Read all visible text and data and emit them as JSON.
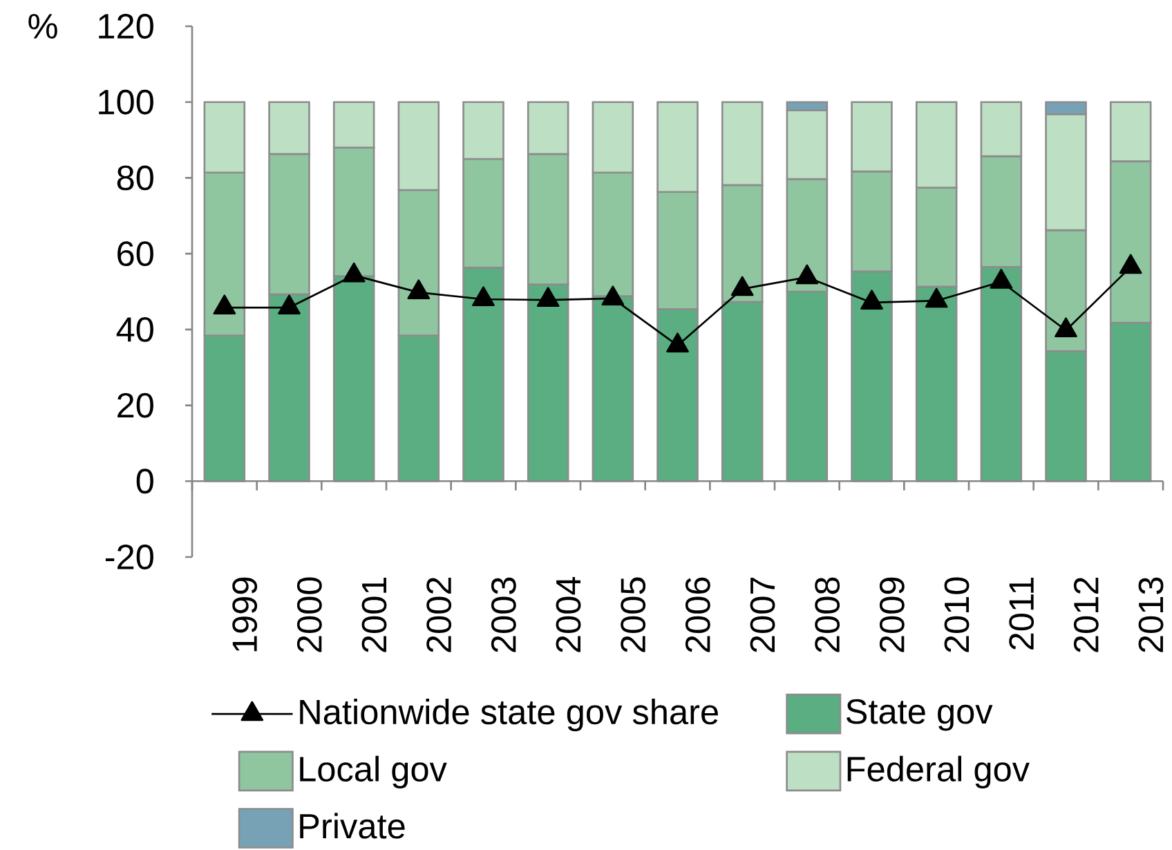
{
  "chart_data": {
    "type": "bar",
    "stacked": true,
    "ylabel": "%",
    "categories": [
      "1999",
      "2000",
      "2001",
      "2002",
      "2003",
      "2004",
      "2005",
      "2006",
      "2007",
      "2008",
      "2009",
      "2010",
      "2011",
      "2012",
      "2013"
    ],
    "series": [
      {
        "name": "State gov",
        "color": "#5aae82",
        "values": [
          38.4,
          49.3,
          54.1,
          38.4,
          56.3,
          51.9,
          48.8,
          45.4,
          47.3,
          50.0,
          55.3,
          51.3,
          56.5,
          34.3,
          41.8
        ]
      },
      {
        "name": "Local gov",
        "color": "#8fc6a0",
        "values": [
          43.0,
          37.0,
          33.9,
          38.4,
          28.7,
          34.4,
          32.6,
          30.9,
          30.8,
          29.7,
          26.4,
          26.1,
          29.2,
          31.9,
          42.6
        ]
      },
      {
        "name": "Federal gov",
        "color": "#bddfc3",
        "values": [
          18.6,
          13.7,
          12.0,
          23.2,
          15.0,
          13.7,
          18.6,
          23.7,
          21.9,
          18.1,
          18.3,
          22.6,
          14.3,
          30.6,
          15.6
        ]
      },
      {
        "name": "Private",
        "color": "#77a2b6",
        "values": [
          null,
          null,
          null,
          null,
          null,
          null,
          null,
          null,
          null,
          2.2,
          null,
          null,
          null,
          3.2,
          null
        ]
      },
      {
        "name": "Nationwide state gov share",
        "type": "line",
        "color": "#000000",
        "marker": "triangle",
        "values": [
          45.8,
          45.8,
          54.3,
          49.8,
          48.0,
          47.8,
          48.2,
          35.8,
          50.7,
          53.8,
          47.1,
          47.6,
          52.6,
          39.8,
          56.5
        ]
      }
    ],
    "ylim": [
      -20,
      120
    ],
    "yticks": [
      -20,
      0,
      20,
      40,
      60,
      80,
      100,
      120
    ],
    "legend": "bottom"
  }
}
